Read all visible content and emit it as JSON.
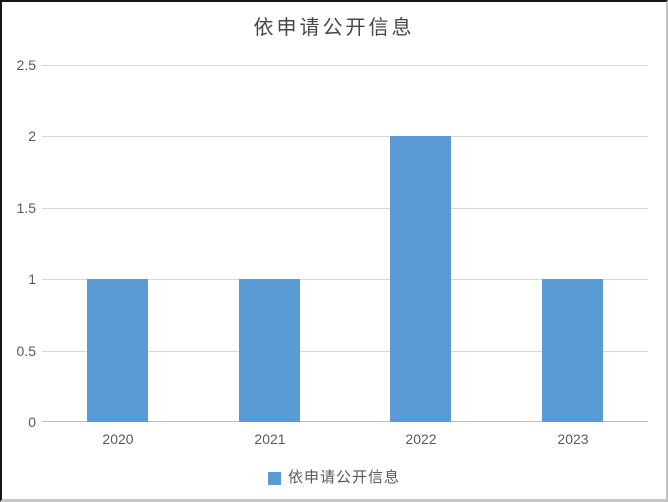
{
  "chart_data": {
    "type": "bar",
    "title": "依申请公开信息",
    "categories": [
      "2020",
      "2021",
      "2022",
      "2023"
    ],
    "values": [
      1,
      1,
      2,
      1
    ],
    "series": [
      {
        "name": "依申请公开信息",
        "values": [
          1,
          1,
          2,
          1
        ]
      }
    ],
    "xlabel": "",
    "ylabel": "",
    "ylim": [
      0,
      2.5
    ],
    "yticks": [
      "0",
      "0.5",
      "1",
      "1.5",
      "2",
      "2.5"
    ],
    "grid": true,
    "legend": {
      "position": "bottom",
      "entries": [
        "依申请公开信息"
      ]
    },
    "colors": {
      "bar": "#5B9BD5",
      "gridline": "#D9D9D9",
      "axis_line": "#BFBFBF",
      "tick_text": "#595959",
      "title_text": "#474747"
    }
  }
}
